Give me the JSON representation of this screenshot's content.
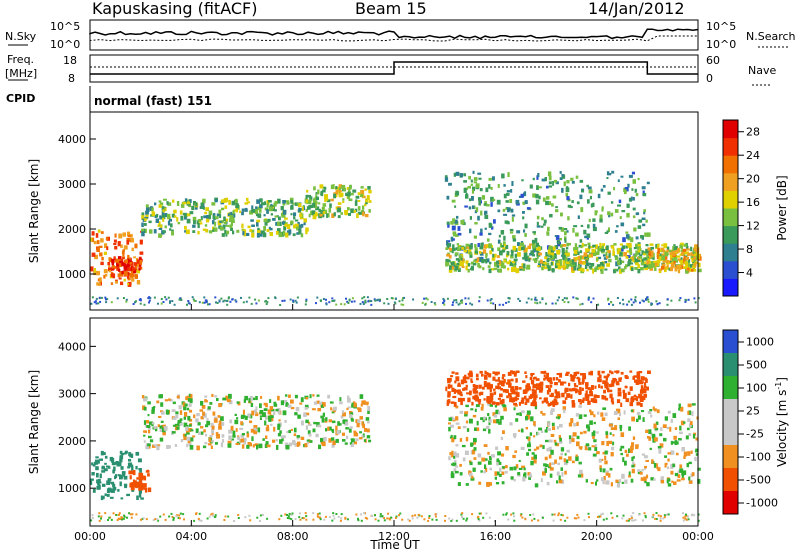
{
  "header": {
    "site": "Kapuskasing (fitACF)",
    "beam": "Beam 15",
    "date": "14/Jan/2012"
  },
  "noise_panel": {
    "left_label": "N.Sky",
    "left_ticks": [
      "10^5",
      "10^0"
    ],
    "right_label": "N.Search",
    "right_ticks": [
      "10^5",
      "10^0"
    ]
  },
  "freq_panel": {
    "left_label_1": "Freq.",
    "left_label_2": "[MHz]",
    "left_ticks": [
      "18",
      "8"
    ],
    "right_label": "Nave",
    "right_ticks": [
      "60",
      "0"
    ]
  },
  "cpid": {
    "label": "CPID",
    "value": "normal (fast) 151"
  },
  "colors": {
    "power": [
      "#1a1aff",
      "#2a4fd0",
      "#2e7f8f",
      "#3a9a5a",
      "#7ac040",
      "#e0d000",
      "#f0a020",
      "#f07000",
      "#f03000",
      "#e00000"
    ],
    "velocity": [
      "#e00000",
      "#f05000",
      "#f09020",
      "#c8c8c8",
      "#c8c8c8",
      "#30b030",
      "#2a8f70",
      "#2a4fd0"
    ]
  },
  "chart_data": [
    {
      "type": "heatmap",
      "name": "power",
      "xlabel": "",
      "ylabel": "Slant Range [km]",
      "x_ticks": [
        "00:00",
        "04:00",
        "08:00",
        "12:00",
        "16:00",
        "20:00",
        "00:00"
      ],
      "y_ticks": [
        "1000",
        "2000",
        "3000",
        "4000"
      ],
      "ylim": [
        200,
        4600
      ],
      "colorbar_label": "Power [dB]",
      "colorbar_ticks": [
        "4",
        "8",
        "12",
        "16",
        "20",
        "24",
        "28"
      ],
      "colorbar_range": [
        0,
        30
      ],
      "features": [
        {
          "t0": 0.0,
          "t1": 2.0,
          "r0": 800,
          "r1": 2000,
          "level": 22
        },
        {
          "t0": 0.8,
          "t1": 2.0,
          "r0": 1000,
          "r1": 1400,
          "level": 26
        },
        {
          "t0": 2.0,
          "t1": 8.5,
          "r0": 1900,
          "r1": 2700,
          "level": 12
        },
        {
          "t0": 8.5,
          "t1": 11.0,
          "r0": 2300,
          "r1": 3000,
          "level": 14
        },
        {
          "t0": 14.0,
          "t1": 22.0,
          "r0": 1200,
          "r1": 3300,
          "level": 10
        },
        {
          "t0": 14.0,
          "t1": 24.0,
          "r0": 1100,
          "r1": 1700,
          "level": 14
        },
        {
          "t0": 22.0,
          "t1": 24.0,
          "r0": 1100,
          "r1": 1600,
          "level": 18
        }
      ]
    },
    {
      "type": "heatmap",
      "name": "velocity",
      "xlabel": "Time UT",
      "ylabel": "Slant Range [km]",
      "x_ticks": [
        "00:00",
        "04:00",
        "08:00",
        "12:00",
        "16:00",
        "20:00",
        "00:00"
      ],
      "y_ticks": [
        "1000",
        "2000",
        "3000",
        "4000"
      ],
      "ylim": [
        200,
        4600
      ],
      "colorbar_label": "Velocity [m s^-1]",
      "colorbar_ticks": [
        "1000",
        "500",
        "100",
        "25",
        "-25",
        "-100",
        "-500",
        "-1000"
      ],
      "features": [
        {
          "t0": 0.0,
          "t1": 2.0,
          "r0": 800,
          "r1": 1800,
          "vel": 200
        },
        {
          "t0": 1.5,
          "t1": 2.3,
          "r0": 1000,
          "r1": 1400,
          "vel": -400
        },
        {
          "t0": 2.0,
          "t1": 11.0,
          "r0": 1900,
          "r1": 3000,
          "vel": 0
        },
        {
          "t0": 14.0,
          "t1": 24.0,
          "r0": 1100,
          "r1": 2800,
          "vel": 0
        },
        {
          "t0": 14.0,
          "t1": 22.0,
          "r0": 2800,
          "r1": 3500,
          "vel": -300
        }
      ]
    }
  ]
}
